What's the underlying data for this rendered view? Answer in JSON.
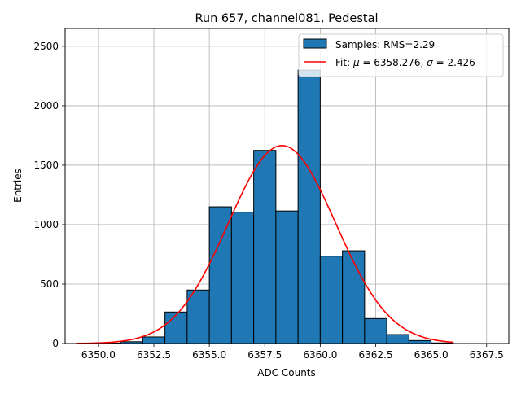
{
  "chart_data": {
    "type": "bar",
    "title": "Run 657, channel081, Pedestal",
    "xlabel": "ADC Counts",
    "ylabel": "Entries",
    "xlim": [
      6348.5,
      6368.5
    ],
    "ylim": [
      0,
      2650
    ],
    "grid": true,
    "legend_position": "top-right",
    "xticks": [
      "6350.0",
      "6352.5",
      "6355.0",
      "6357.5",
      "6360.0",
      "6362.5",
      "6365.0",
      "6367.5"
    ],
    "yticks": [
      "0",
      "500",
      "1000",
      "1500",
      "2000",
      "2500"
    ],
    "histogram": {
      "name": "Samples: RMS=2.29",
      "bin_edges": [
        6350.0,
        6351.0,
        6352.0,
        6353.0,
        6354.0,
        6355.0,
        6356.0,
        6357.0,
        6358.0,
        6359.0,
        6360.0,
        6361.0,
        6362.0,
        6363.0,
        6364.0,
        6365.0,
        6366.0,
        6367.0,
        6368.0
      ],
      "counts": [
        3,
        15,
        55,
        265,
        450,
        1150,
        1105,
        1625,
        1115,
        2300,
        735,
        780,
        210,
        75,
        25,
        5,
        0,
        0
      ],
      "color": "#1f77b4",
      "edge_color": "#000000"
    },
    "fit": {
      "name_prefix": "Fit: ",
      "mu_symbol": "μ",
      "mu_text": " = 6358.276, ",
      "sigma_symbol": "σ",
      "sigma_text": " = 2.426",
      "mu": 6358.276,
      "sigma": 2.426,
      "amplitude": 1665,
      "x_range": [
        6349.0,
        6366.0
      ],
      "color": "#ff0000"
    }
  }
}
